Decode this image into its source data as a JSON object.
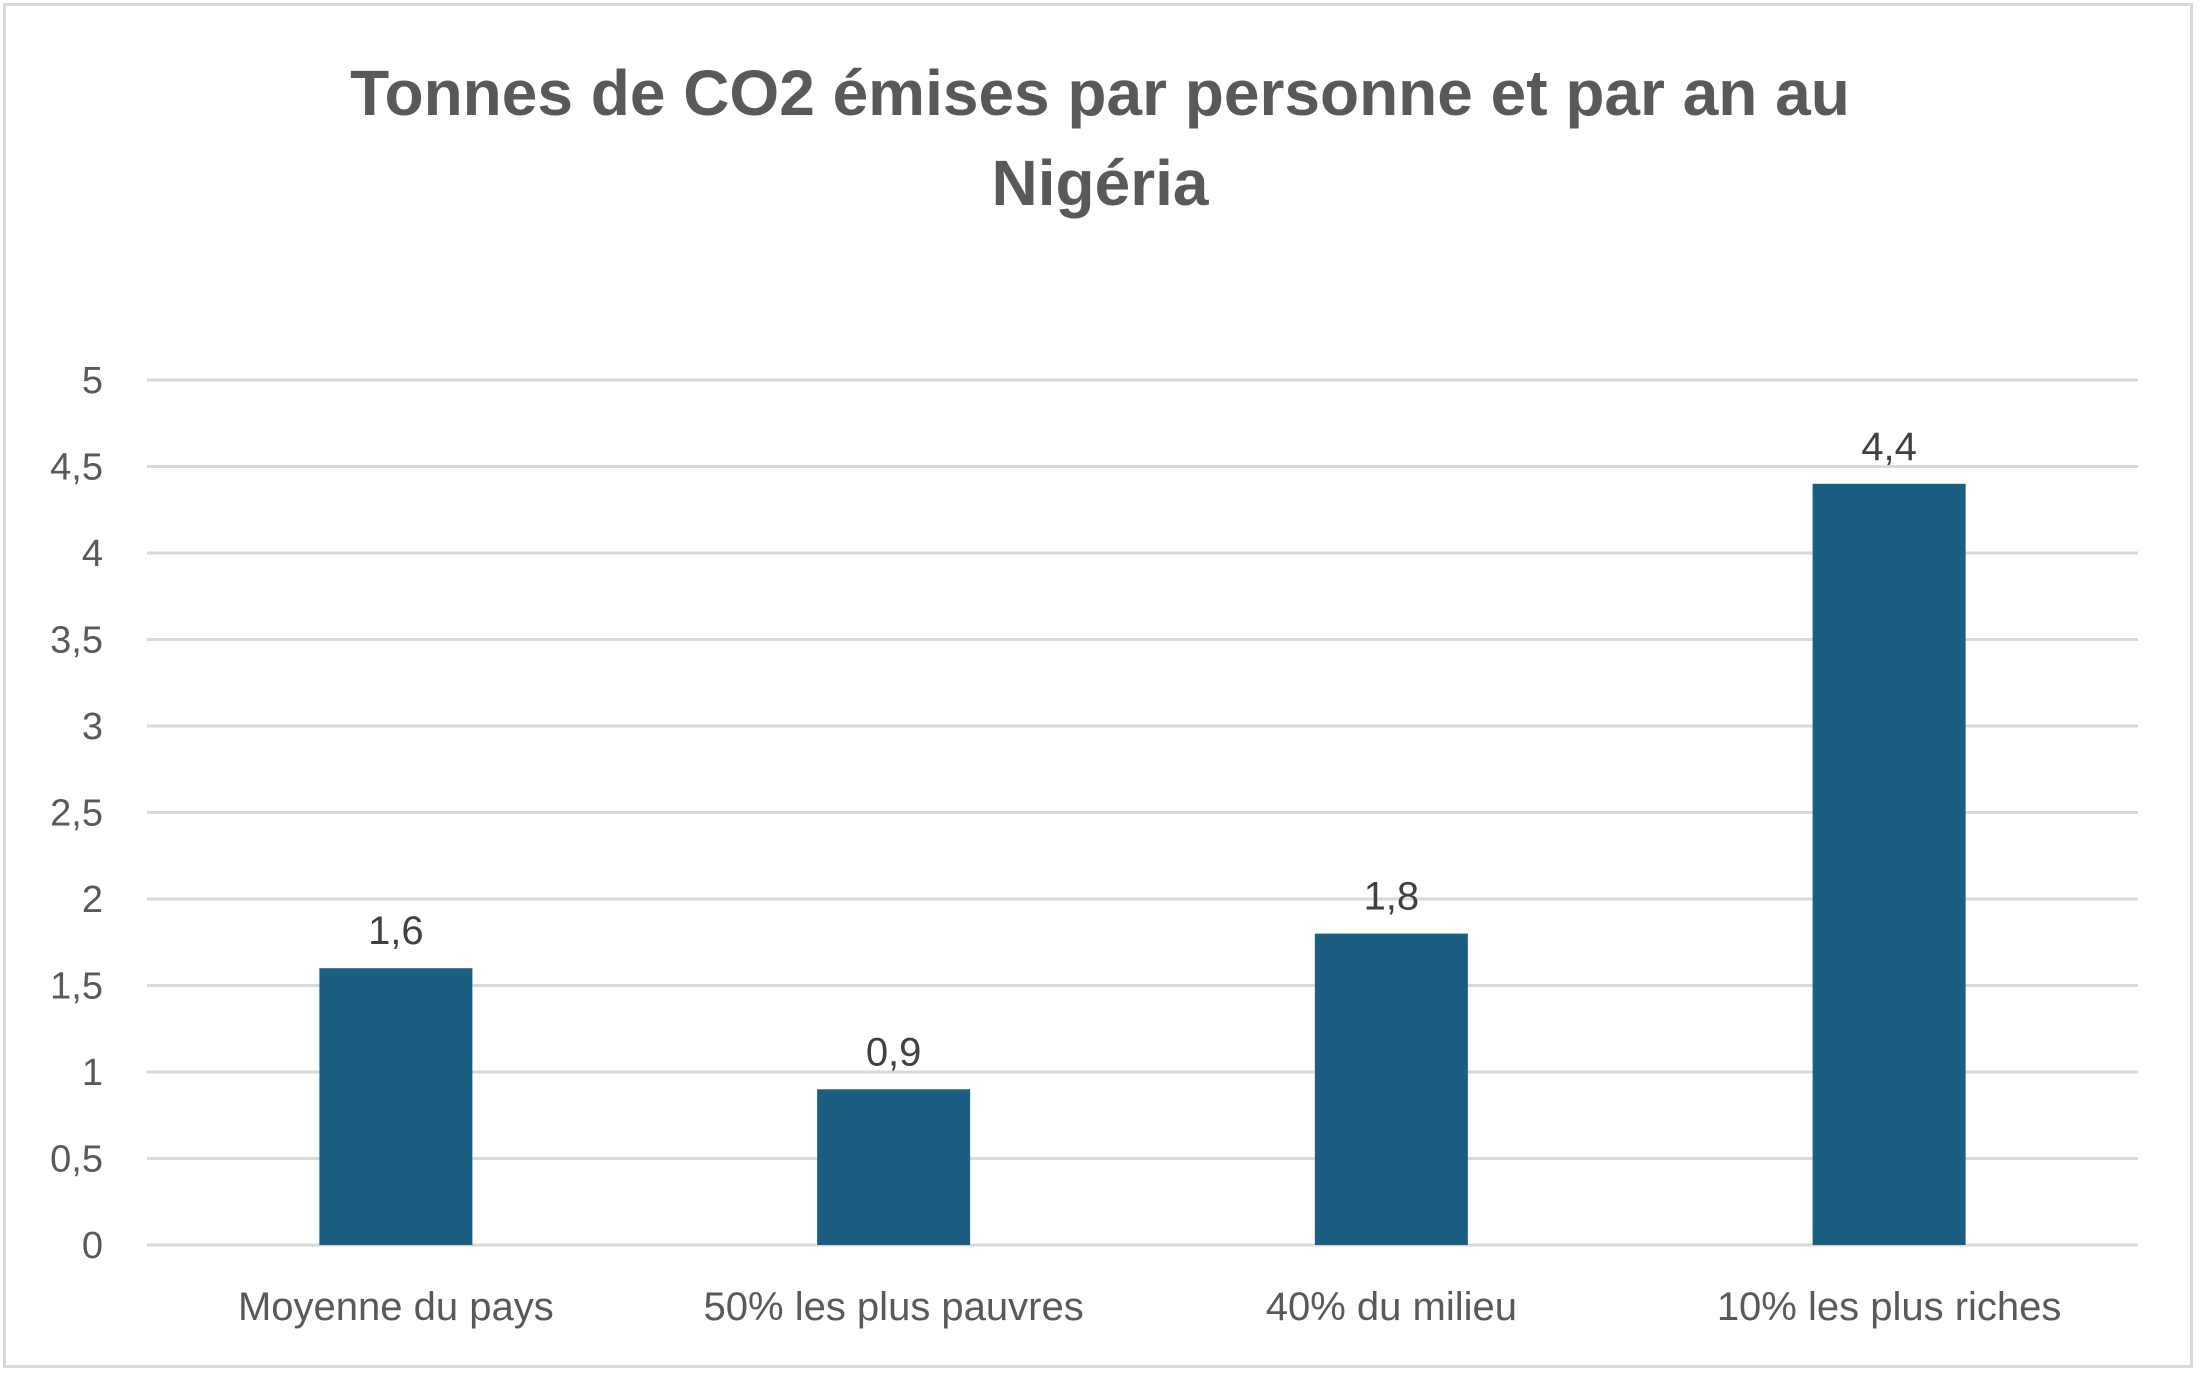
{
  "chart_data": {
    "type": "bar",
    "title_lines": [
      "Tonnes de CO2 émises par personne et par an au",
      "Nigéria"
    ],
    "categories": [
      "Moyenne du pays",
      "50% les plus pauvres",
      "40% du milieu",
      "10% les plus riches"
    ],
    "values": [
      1.6,
      0.9,
      1.8,
      4.4
    ],
    "value_labels": [
      "1,6",
      "0,9",
      "1,8",
      "4,4"
    ],
    "ylim": [
      0,
      5
    ],
    "yticks": [
      0,
      0.5,
      1,
      1.5,
      2,
      2.5,
      3,
      3.5,
      4,
      4.5,
      5
    ],
    "ytick_labels": [
      "0",
      "0,5",
      "1",
      "1,5",
      "2",
      "2,5",
      "3",
      "3,5",
      "4",
      "4,5",
      "5"
    ],
    "xlabel": "",
    "ylabel": "",
    "grid": true,
    "legend": "none",
    "bar_color": "#1a5e82",
    "grid_color": "#d9d9d9"
  }
}
